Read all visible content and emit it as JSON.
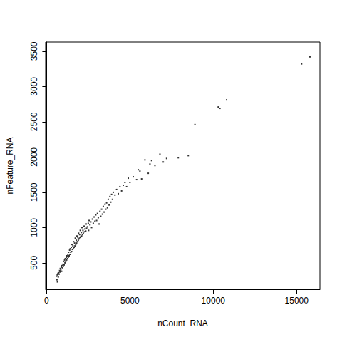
{
  "chart_data": {
    "type": "scatter",
    "x_label": "nCount_RNA",
    "y_label": "nFeature_RNA",
    "color": "#000000",
    "marker": "point",
    "grid": false,
    "xlim": [
      -60,
      16400
    ],
    "xticks": [
      0,
      5000,
      10000,
      15000
    ],
    "ylim": [
      125,
      3630
    ],
    "yticks": [
      500,
      1000,
      1500,
      2000,
      2500,
      3000,
      3500
    ],
    "x": [
      600,
      620,
      640,
      650,
      680,
      700,
      720,
      750,
      780,
      800,
      820,
      850,
      880,
      900,
      920,
      950,
      980,
      1000,
      1020,
      1050,
      1080,
      1100,
      1120,
      1150,
      1180,
      1200,
      1220,
      1250,
      1280,
      1300,
      1320,
      1350,
      1380,
      1400,
      1420,
      1450,
      1480,
      1500,
      1520,
      1550,
      1580,
      1600,
      1620,
      1650,
      1680,
      1700,
      1720,
      1750,
      1780,
      1800,
      1820,
      1850,
      1880,
      1900,
      1920,
      1950,
      1980,
      2000,
      2020,
      2050,
      2080,
      2100,
      2120,
      2150,
      2180,
      2200,
      2250,
      2280,
      2300,
      2350,
      2380,
      2400,
      2450,
      2500,
      2520,
      2550,
      2600,
      2650,
      2700,
      2750,
      2800,
      2850,
      2900,
      2950,
      3000,
      3050,
      3100,
      3150,
      3200,
      3250,
      3300,
      3350,
      3400,
      3450,
      3500,
      3550,
      3600,
      3650,
      3700,
      3750,
      3800,
      3850,
      3900,
      3950,
      4000,
      4100,
      4200,
      4300,
      4400,
      4500,
      4600,
      4700,
      4800,
      4900,
      5000,
      5200,
      5400,
      5500,
      5600,
      5700,
      5900,
      6100,
      6200,
      6300,
      6500,
      6800,
      7000,
      7200,
      7900,
      8500,
      8900,
      10300,
      10400,
      10800,
      15300,
      15800
    ],
    "values": [
      310,
      260,
      330,
      230,
      350,
      300,
      360,
      340,
      390,
      370,
      420,
      400,
      440,
      380,
      460,
      430,
      480,
      450,
      520,
      470,
      540,
      500,
      560,
      520,
      580,
      540,
      600,
      560,
      620,
      580,
      650,
      600,
      680,
      620,
      700,
      650,
      720,
      660,
      760,
      690,
      740,
      700,
      800,
      720,
      780,
      740,
      850,
      760,
      820,
      780,
      880,
      800,
      860,
      820,
      920,
      840,
      900,
      860,
      960,
      870,
      930,
      880,
      1000,
      900,
      960,
      920,
      1020,
      940,
      980,
      950,
      1050,
      990,
      1010,
      1060,
      960,
      1100,
      1040,
      1080,
      1000,
      1120,
      1060,
      1150,
      1090,
      1180,
      1100,
      1200,
      1140,
      1050,
      1230,
      1160,
      1260,
      1190,
      1300,
      1220,
      1330,
      1260,
      1350,
      1280,
      1400,
      1320,
      1440,
      1360,
      1470,
      1400,
      1500,
      1460,
      1540,
      1480,
      1580,
      1520,
      1600,
      1640,
      1580,
      1700,
      1640,
      1720,
      1680,
      1820,
      1800,
      1690,
      1960,
      1770,
      1900,
      1950,
      1880,
      2040,
      1930,
      1980,
      1990,
      2020,
      2460,
      2710,
      2690,
      2810,
      3320,
      3420
    ]
  }
}
